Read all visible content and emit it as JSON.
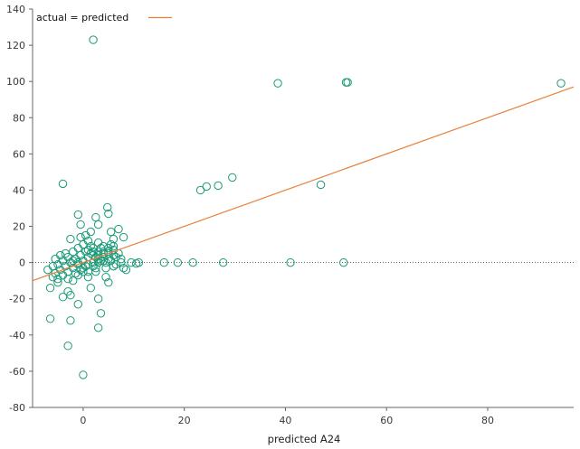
{
  "chart_data": {
    "type": "scatter",
    "title": "",
    "xlabel": "predicted A24",
    "ylabel": "",
    "xlim": [
      -10,
      97
    ],
    "ylim": [
      -80,
      140
    ],
    "xticks": [
      0,
      20,
      40,
      60,
      80
    ],
    "yticks": [
      -80,
      -60,
      -40,
      -20,
      0,
      20,
      40,
      60,
      80,
      100,
      120,
      140
    ],
    "grid": false,
    "legend": {
      "position": "top-left",
      "entries": [
        "actual = predicted"
      ]
    },
    "colors": {
      "points": "#1a9a78",
      "reference_line": "#e8803c",
      "zero_line": "#333333",
      "axes": "#666666"
    },
    "reference_line": {
      "name": "actual = predicted",
      "slope": 1,
      "intercept": 0
    },
    "zero_line": {
      "y": 0,
      "style": "dotted"
    },
    "series": [
      {
        "marker": "open-circle",
        "points": [
          [
            2,
            123
          ],
          [
            38.5,
            99
          ],
          [
            52,
            99.5
          ],
          [
            52.3,
            99.5
          ],
          [
            94.5,
            99
          ],
          [
            -4,
            43.5
          ],
          [
            29.5,
            47
          ],
          [
            26.7,
            42.5
          ],
          [
            24.4,
            42
          ],
          [
            23.2,
            40
          ],
          [
            47,
            43
          ],
          [
            -1,
            26.5
          ],
          [
            4.8,
            30.5
          ],
          [
            5,
            27
          ],
          [
            2.5,
            25
          ],
          [
            3,
            21
          ],
          [
            -0.5,
            21
          ],
          [
            7,
            18.5
          ],
          [
            5.5,
            17
          ],
          [
            1.5,
            17
          ],
          [
            0.5,
            15
          ],
          [
            -0.5,
            14
          ],
          [
            -2.5,
            13
          ],
          [
            8,
            14
          ],
          [
            6,
            13
          ],
          [
            16,
            0
          ],
          [
            18.7,
            0
          ],
          [
            21.7,
            0
          ],
          [
            27.7,
            0
          ],
          [
            41,
            0
          ],
          [
            51.5,
            0
          ],
          [
            9.5,
            0
          ],
          [
            10.5,
            -0.5
          ],
          [
            11,
            0
          ],
          [
            8,
            -3
          ],
          [
            8.5,
            -4
          ],
          [
            -7,
            -4
          ],
          [
            -6.5,
            -31
          ],
          [
            -2.5,
            -32
          ],
          [
            -3,
            -46
          ],
          [
            0,
            -62
          ],
          [
            3.5,
            -28
          ],
          [
            3,
            -36
          ],
          [
            3,
            -20
          ],
          [
            -1,
            -23
          ],
          [
            1.5,
            -14
          ],
          [
            -2.5,
            -18
          ],
          [
            -3,
            -16
          ],
          [
            -6.5,
            -14
          ],
          [
            -5,
            -11
          ],
          [
            -2,
            -10
          ],
          [
            5,
            -11
          ],
          [
            4.5,
            -8
          ],
          [
            1,
            -8
          ],
          [
            -4,
            -19
          ],
          [
            0,
            -5
          ],
          [
            2.5,
            -3
          ],
          [
            6,
            -2
          ],
          [
            7.5,
            2
          ],
          [
            -5.5,
            2
          ],
          [
            -4.5,
            4
          ],
          [
            -3.5,
            5
          ],
          [
            -2,
            6
          ],
          [
            -1,
            8
          ],
          [
            0,
            10
          ],
          [
            1,
            12
          ],
          [
            3,
            11
          ],
          [
            4,
            9
          ],
          [
            5,
            8
          ],
          [
            6,
            7
          ],
          [
            7,
            5
          ],
          [
            6.5,
            3
          ],
          [
            5.5,
            1
          ],
          [
            4.5,
            0
          ],
          [
            3.5,
            1
          ],
          [
            2.5,
            3
          ],
          [
            1.5,
            5
          ],
          [
            0.5,
            6
          ],
          [
            -0.5,
            4
          ],
          [
            -1.5,
            2
          ],
          [
            -2.5,
            0
          ],
          [
            -3.5,
            -2
          ],
          [
            -4.5,
            -4
          ],
          [
            -5.5,
            -6
          ],
          [
            -6,
            -8
          ],
          [
            -3,
            -9
          ],
          [
            -1,
            -7
          ],
          [
            1,
            -5
          ],
          [
            2,
            -2
          ],
          [
            3,
            0
          ],
          [
            4,
            3
          ],
          [
            5,
            5
          ],
          [
            6,
            9
          ],
          [
            2,
            8
          ],
          [
            3,
            6
          ],
          [
            1,
            3
          ],
          [
            0,
            1
          ],
          [
            -1,
            -1
          ],
          [
            -2,
            -3
          ],
          [
            -3,
            -5
          ],
          [
            -4,
            -7
          ],
          [
            -5,
            -9
          ],
          [
            2,
            4
          ],
          [
            4,
            6
          ],
          [
            3.5,
            8
          ],
          [
            5.5,
            10
          ],
          [
            1.5,
            9
          ],
          [
            0.5,
            -2
          ],
          [
            -0.5,
            -4
          ],
          [
            -1.5,
            -6
          ],
          [
            2.5,
            -5
          ],
          [
            4.5,
            -3
          ],
          [
            6.5,
            -1
          ],
          [
            7.5,
            0
          ],
          [
            3,
            2
          ],
          [
            4,
            1
          ],
          [
            5,
            2
          ],
          [
            6,
            4
          ],
          [
            2,
            0
          ],
          [
            1,
            -1
          ],
          [
            0,
            -3
          ],
          [
            -1,
            0
          ],
          [
            -2,
            1
          ],
          [
            -3,
            3
          ],
          [
            -4,
            1
          ],
          [
            -5,
            -1
          ],
          [
            -6,
            -2
          ],
          [
            3,
            4
          ],
          [
            4,
            5
          ],
          [
            5,
            6
          ],
          [
            2,
            6
          ],
          [
            1,
            7
          ]
        ]
      }
    ]
  }
}
